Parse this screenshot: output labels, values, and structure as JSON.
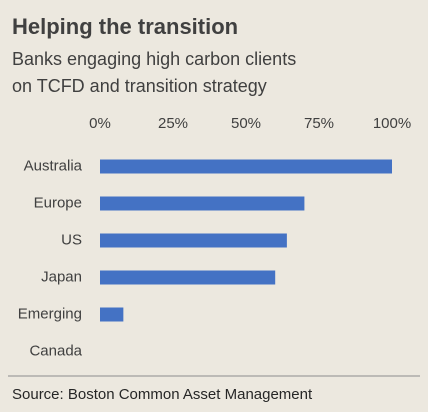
{
  "chart_data": {
    "type": "bar",
    "orientation": "horizontal",
    "title": "Helping the transition",
    "subtitle": [
      "Banks engaging high carbon clients",
      "on TCFD and transition strategy"
    ],
    "categories": [
      "Australia",
      "Europe",
      "US",
      "Japan",
      "Emerging",
      "Canada"
    ],
    "values": [
      100,
      70,
      64,
      60,
      8,
      0
    ],
    "color": "#4472c4",
    "xlim": [
      0,
      100
    ],
    "xticks": [
      {
        "value": 0,
        "label": "0%"
      },
      {
        "value": 25,
        "label": "25%"
      },
      {
        "value": 50,
        "label": "50%"
      },
      {
        "value": 75,
        "label": "75%"
      },
      {
        "value": 100,
        "label": "100%"
      }
    ],
    "grid": false,
    "source": "Source: Boston Common Asset Management"
  }
}
